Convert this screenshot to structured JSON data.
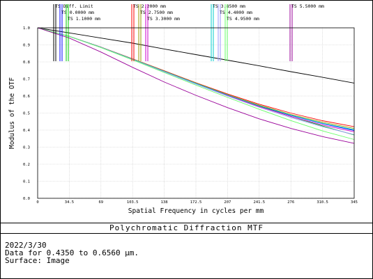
{
  "chart_data": {
    "type": "line",
    "title": "Polychromatic Diffraction MTF",
    "xlabel": "Spatial Frequency in cycles per mm",
    "ylabel": "Modulus of the OTF",
    "xlim": [
      0,
      345
    ],
    "ylim": [
      0,
      1.0
    ],
    "x_ticks": [
      "0",
      "34.5",
      "69",
      "103.5",
      "138",
      "172.5",
      "207",
      "241.5",
      "276",
      "310.5",
      "345"
    ],
    "y_ticks": [
      "0.0",
      "0.1",
      "0.2",
      "0.3",
      "0.4",
      "0.5",
      "0.6",
      "0.7",
      "0.8",
      "0.9",
      "1.0"
    ],
    "grid": true,
    "x": [
      0,
      34.5,
      69,
      103.5,
      138,
      172.5,
      207,
      241.5,
      276,
      310.5,
      345
    ],
    "series": [
      {
        "name": "TS Diff. Limit",
        "color": "#000000",
        "values": [
          1.0,
          0.97,
          0.94,
          0.91,
          0.876,
          0.843,
          0.81,
          0.777,
          0.743,
          0.71,
          0.676
        ]
      },
      {
        "name": "TS 0.0000 mm",
        "color": "#0000ff",
        "values": [
          1.0,
          0.95,
          0.886,
          0.816,
          0.745,
          0.674,
          0.605,
          0.542,
          0.486,
          0.438,
          0.398
        ]
      },
      {
        "name": "TS 1.1000 mm",
        "color": "#00cc00",
        "values": [
          1.0,
          0.95,
          0.886,
          0.816,
          0.745,
          0.674,
          0.605,
          0.54,
          0.48,
          0.424,
          0.372
        ]
      },
      {
        "name": "TS 2.2000 mm",
        "color": "#ff0000",
        "values": [
          1.0,
          0.95,
          0.887,
          0.818,
          0.748,
          0.678,
          0.612,
          0.552,
          0.5,
          0.455,
          0.42
        ]
      },
      {
        "name": "TS 2.7500 mm",
        "color": "#999900",
        "values": [
          1.0,
          0.95,
          0.886,
          0.817,
          0.746,
          0.676,
          0.608,
          0.546,
          0.492,
          0.446,
          0.41
        ]
      },
      {
        "name": "TS 3.3000 mm",
        "color": "#cc00cc",
        "values": [
          1.0,
          0.95,
          0.886,
          0.815,
          0.743,
          0.672,
          0.603,
          0.538,
          0.48,
          0.43,
          0.39
        ]
      },
      {
        "name": "TS 3.8500 mm",
        "color": "#00cccc",
        "values": [
          1.0,
          0.95,
          0.886,
          0.816,
          0.745,
          0.674,
          0.606,
          0.543,
          0.488,
          0.44,
          0.402
        ]
      },
      {
        "name": "TS 4.4000 mm",
        "color": "#9999ff",
        "values": [
          1.0,
          0.95,
          0.885,
          0.814,
          0.742,
          0.67,
          0.6,
          0.534,
          0.474,
          0.42,
          0.374
        ]
      },
      {
        "name": "TS 4.9500 mm",
        "color": "#66ff66",
        "values": [
          1.0,
          0.95,
          0.884,
          0.812,
          0.738,
          0.664,
          0.592,
          0.522,
          0.456,
          0.395,
          0.345
        ]
      },
      {
        "name": "TS 5.5000 mm",
        "color": "#990099",
        "values": [
          1.0,
          0.94,
          0.858,
          0.768,
          0.682,
          0.604,
          0.532,
          0.466,
          0.41,
          0.362,
          0.322
        ]
      }
    ]
  },
  "subtitle": "Polychromatic Diffraction MTF",
  "meta": {
    "date": "2022/3/30",
    "data_range": "Data for 0.4350 to 0.6560 µm.",
    "surface": "Surface: Image"
  }
}
